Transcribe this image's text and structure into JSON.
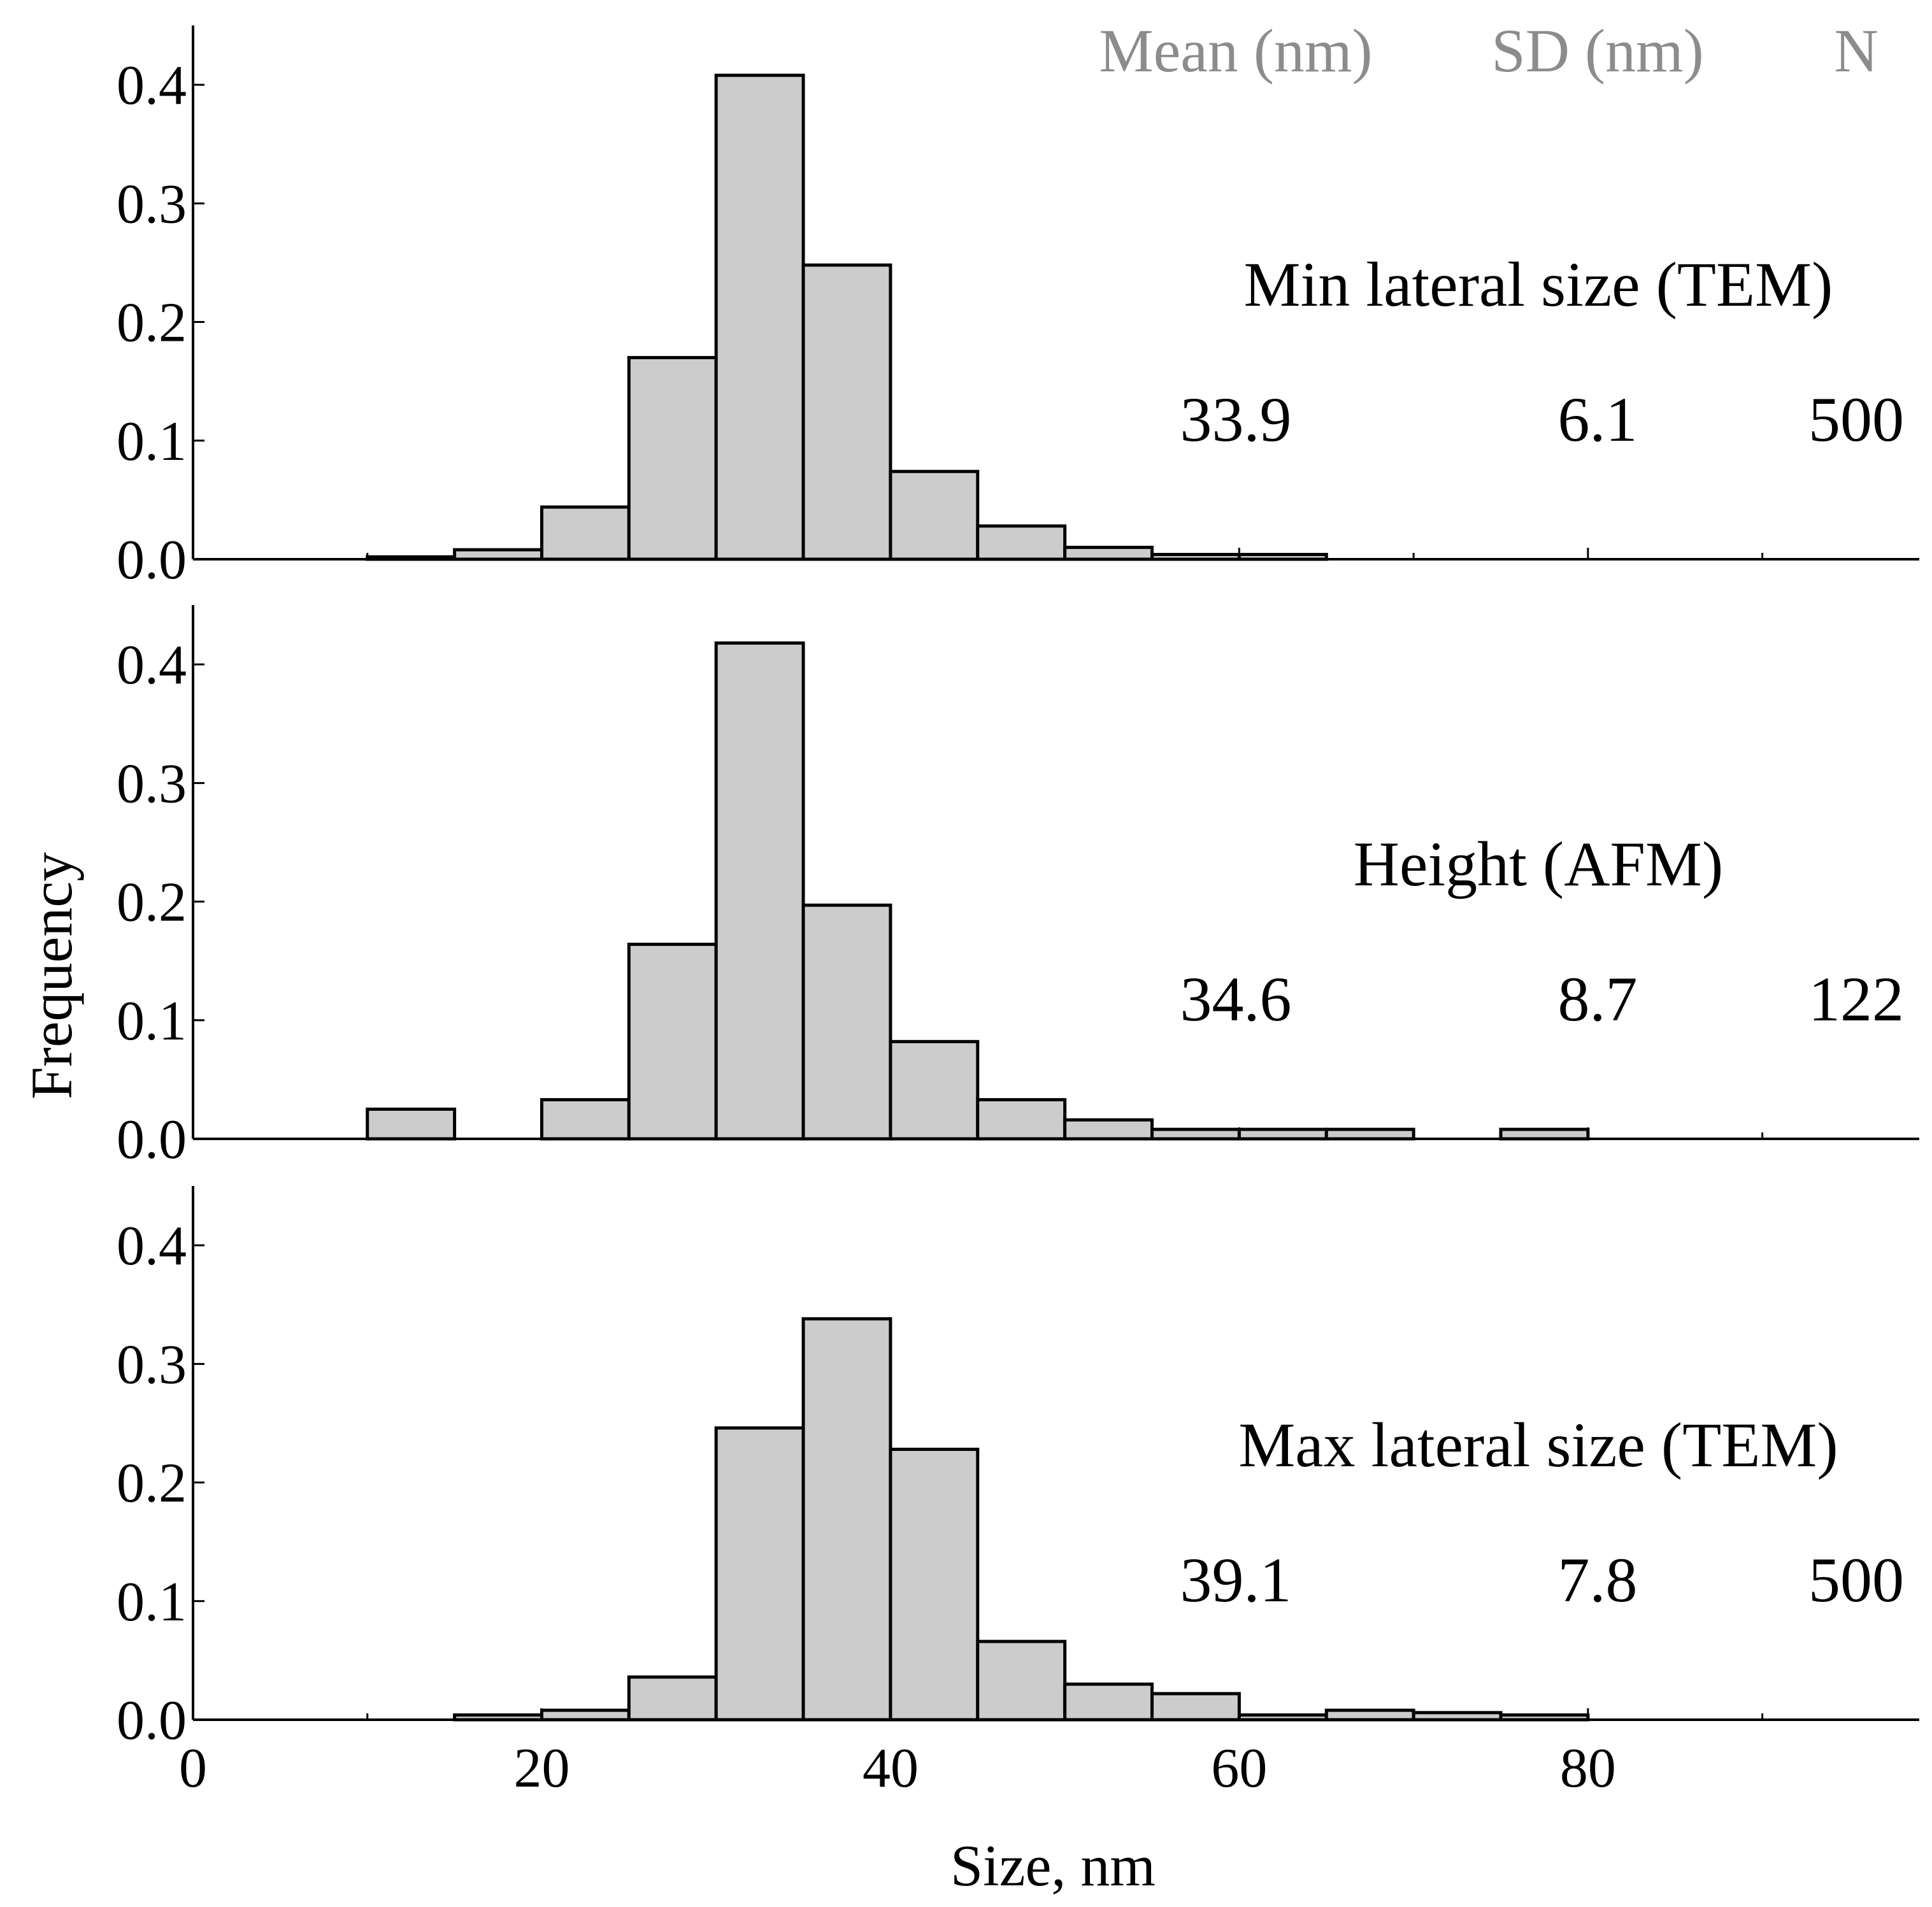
{
  "chart_data": [
    {
      "type": "bar",
      "panel": "top",
      "title": "Min lateral size (TEM)",
      "bin_edges": [
        10,
        15,
        20,
        25,
        30,
        35,
        40,
        45,
        50,
        55,
        60,
        65
      ],
      "values": [
        0.002,
        0.008,
        0.044,
        0.17,
        0.408,
        0.248,
        0.074,
        0.028,
        0.01,
        0.004,
        0.004
      ],
      "stats": {
        "mean": "33.9",
        "sd": "6.1",
        "n": "500"
      },
      "yticks": [
        "0.0",
        "0.1",
        "0.2",
        "0.3",
        "0.4"
      ],
      "ylim": [
        0,
        0.45
      ],
      "xlim": [
        0,
        99
      ]
    },
    {
      "type": "bar",
      "panel": "middle",
      "title": "Height (AFM)",
      "bin_edges": [
        10,
        15,
        20,
        25,
        30,
        35,
        40,
        45,
        50,
        55,
        60,
        65,
        70,
        75,
        80
      ],
      "values": [
        0.025,
        0,
        0.033,
        0.164,
        0.418,
        0.197,
        0.082,
        0.033,
        0.016,
        0.008,
        0.008,
        0.008,
        0,
        0.008
      ],
      "stats": {
        "mean": "34.6",
        "sd": "8.7",
        "n": "122"
      },
      "yticks": [
        "0.0",
        "0.1",
        "0.2",
        "0.3",
        "0.4"
      ],
      "ylim": [
        0,
        0.45
      ],
      "xlim": [
        0,
        99
      ]
    },
    {
      "type": "bar",
      "panel": "bottom",
      "title": "Max lateral size (TEM)",
      "bin_edges": [
        15,
        20,
        25,
        30,
        35,
        40,
        45,
        50,
        55,
        60,
        65,
        70,
        75,
        80
      ],
      "values": [
        0.004,
        0.008,
        0.036,
        0.246,
        0.338,
        0.228,
        0.066,
        0.03,
        0.022,
        0.004,
        0.008,
        0.006,
        0.004
      ],
      "stats": {
        "mean": "39.1",
        "sd": "7.8",
        "n": "500"
      },
      "yticks": [
        "0.0",
        "0.1",
        "0.2",
        "0.3",
        "0.4"
      ],
      "ylim": [
        0,
        0.45
      ],
      "xlim": [
        0,
        99
      ],
      "xticks": [
        "0",
        "20",
        "40",
        "60",
        "80"
      ]
    }
  ],
  "header": {
    "mean_label": "Mean (nm)",
    "sd_label": "SD (nm)",
    "n_label": "N"
  },
  "xlabel": "Size, nm",
  "ylabel": "Frequency",
  "colors": {
    "bar_fill": "#cccccc",
    "bar_stroke": "#000000",
    "header_text": "#8c8c8c"
  }
}
